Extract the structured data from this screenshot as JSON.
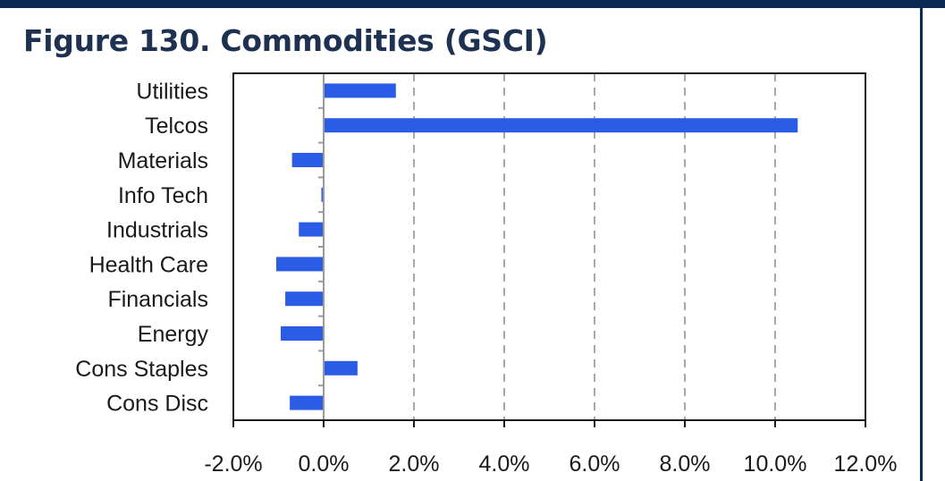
{
  "figure": {
    "title": "Figure 130. Commodities (GSCI)"
  },
  "chart_data": {
    "type": "bar",
    "orientation": "horizontal",
    "categories": [
      "Utilities",
      "Telcos",
      "Materials",
      "Info Tech",
      "Industrials",
      "Health Care",
      "Financials",
      "Energy",
      "Cons Staples",
      "Cons Disc"
    ],
    "values": [
      1.6,
      10.5,
      -0.7,
      -0.05,
      -0.55,
      -1.05,
      -0.85,
      -0.95,
      0.75,
      -0.75
    ],
    "xlim": [
      -2.0,
      12.0
    ],
    "xticks": [
      -2,
      0,
      2,
      4,
      6,
      8,
      10,
      12
    ],
    "xtick_labels": [
      "-2.0%",
      "0.0%",
      "2.0%",
      "4.0%",
      "6.0%",
      "8.0%",
      "10.0%",
      "12.0%"
    ],
    "grid": "vertical dashed",
    "bar_color": "#2b5ce6",
    "title": "Figure 130. Commodities (GSCI)",
    "xlabel": "",
    "ylabel": ""
  }
}
